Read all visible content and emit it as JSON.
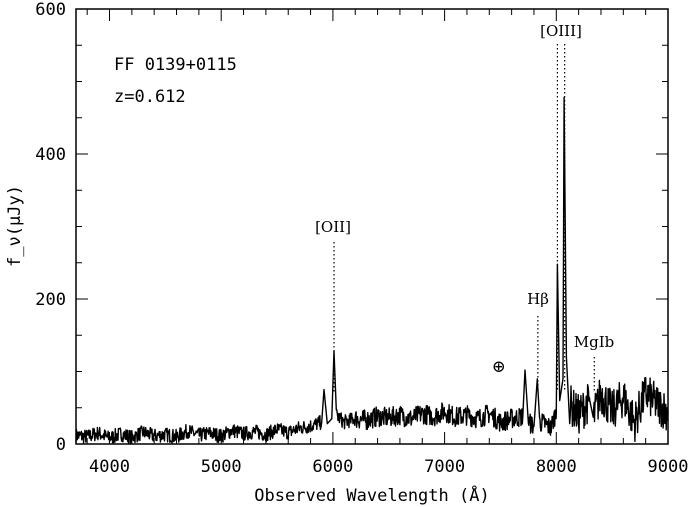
{
  "chart_data": {
    "type": "line",
    "object_name": "FF 0139+0115",
    "redshift_label": "z=0.612",
    "xlabel": "Observed Wavelength (Å)",
    "ylabel": "f_ν(μJy)",
    "xlim": [
      3700,
      9000
    ],
    "ylim": [
      0,
      600
    ],
    "x_ticks": [
      4000,
      5000,
      6000,
      7000,
      8000,
      9000
    ],
    "y_ticks": [
      0,
      200,
      400,
      600
    ],
    "x_tick_labels": [
      "4000",
      "5000",
      "6000",
      "7000",
      "8000",
      "9000"
    ],
    "y_tick_labels": [
      "0",
      "200",
      "400",
      "600"
    ],
    "grid": false,
    "zero_line": 0,
    "series": [
      {
        "style": "solid-black",
        "x": [
          3700,
          3800,
          3900,
          4000,
          4100,
          4200,
          4300,
          4400,
          4500,
          4600,
          4700,
          4800,
          4900,
          5000,
          5100,
          5200,
          5300,
          5400,
          5500,
          5600,
          5700,
          5800,
          5900,
          5920,
          5950,
          5990,
          6010,
          6030,
          6100,
          6200,
          6300,
          6400,
          6500,
          6600,
          6700,
          6800,
          6900,
          7000,
          7100,
          7200,
          7300,
          7400,
          7500,
          7600,
          7700,
          7720,
          7750,
          7800,
          7830,
          7850,
          7900,
          7950,
          8000,
          8010,
          8030,
          8060,
          8070,
          8090,
          8120,
          8200,
          8300,
          8330,
          8400,
          8500,
          8600,
          8700,
          8800,
          8900,
          9000
        ],
        "y": [
          12,
          10,
          15,
          8,
          14,
          9,
          16,
          11,
          13,
          10,
          18,
          12,
          15,
          11,
          19,
          14,
          17,
          13,
          20,
          16,
          22,
          25,
          30,
          75,
          28,
          35,
          128,
          40,
          30,
          35,
          33,
          38,
          36,
          40,
          35,
          42,
          38,
          45,
          37,
          40,
          35,
          42,
          30,
          35,
          38,
          102,
          30,
          25,
          90,
          30,
          28,
          22,
          45,
          248,
          60,
          90,
          478,
          120,
          55,
          40,
          60,
          35,
          70,
          45,
          65,
          30,
          70,
          55,
          45
        ]
      }
    ],
    "annotations": [
      {
        "label": "[OII]",
        "x": 6010
      },
      {
        "label": "Hβ",
        "x": 7835
      },
      {
        "label": "[OIII]",
        "x": 8010
      },
      {
        "label": "[OIII]",
        "x": 8075
      },
      {
        "label": "MgIb",
        "x": 8340
      },
      {
        "label": "⊕",
        "x": 7700
      }
    ]
  }
}
